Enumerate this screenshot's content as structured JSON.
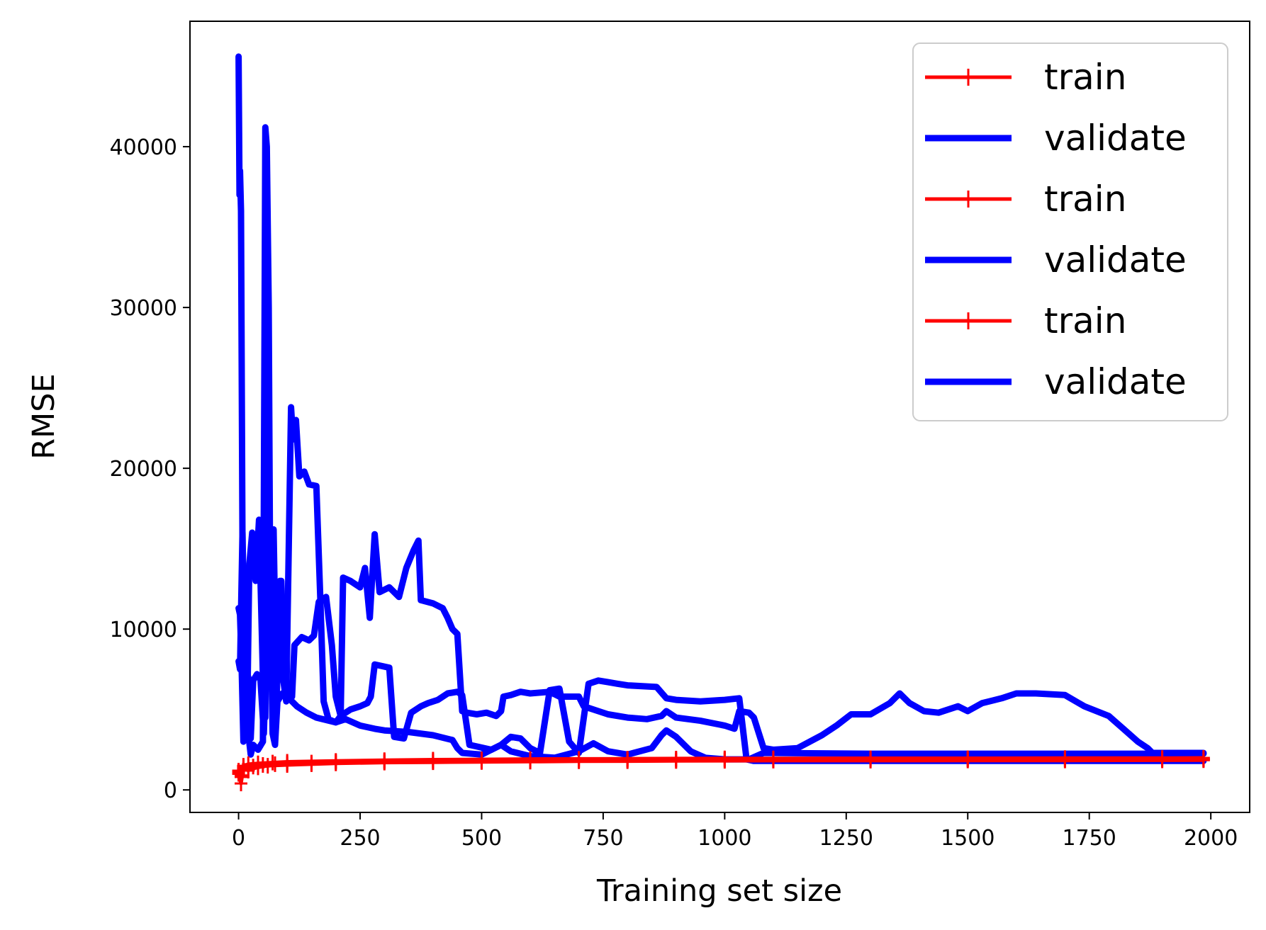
{
  "chart_data": {
    "type": "line",
    "xlabel": "Training set size",
    "ylabel": "RMSE",
    "xlim": [
      -100,
      2080
    ],
    "ylim": [
      -1400,
      47800
    ],
    "xticks": [
      "0",
      "250",
      "500",
      "750",
      "1000",
      "1250",
      "1500",
      "1750",
      "2000"
    ],
    "yticks": [
      "0",
      "10000",
      "20000",
      "30000",
      "40000"
    ],
    "grid": false,
    "legend_position": "top-right",
    "legend": [
      "train",
      "validate",
      "train",
      "validate",
      "train",
      "validate"
    ],
    "colors": {
      "train": "#ff0000",
      "validate": "#0000ff"
    },
    "series": [
      {
        "name": "train",
        "color": "#ff0000",
        "marker": "+",
        "points": [
          [
            0,
            1100
          ],
          [
            5,
            900
          ],
          [
            10,
            1400
          ],
          [
            20,
            1200
          ],
          [
            30,
            1450
          ],
          [
            50,
            1550
          ],
          [
            75,
            1600
          ],
          [
            100,
            1650
          ],
          [
            150,
            1700
          ],
          [
            200,
            1750
          ],
          [
            300,
            1780
          ],
          [
            400,
            1800
          ],
          [
            500,
            1820
          ],
          [
            600,
            1850
          ],
          [
            700,
            1860
          ],
          [
            800,
            1870
          ],
          [
            900,
            1880
          ],
          [
            1000,
            1900
          ],
          [
            1100,
            1900
          ],
          [
            1300,
            1900
          ],
          [
            1500,
            1900
          ],
          [
            1700,
            1900
          ],
          [
            1900,
            1900
          ],
          [
            1985,
            1900
          ]
        ]
      },
      {
        "name": "validate",
        "color": "#0000ff",
        "points": [
          [
            0,
            45600
          ],
          [
            1,
            41000
          ],
          [
            2,
            37000
          ],
          [
            3,
            38500
          ],
          [
            5,
            36000
          ],
          [
            8,
            15000
          ],
          [
            10,
            11000
          ],
          [
            15,
            9500
          ],
          [
            20,
            3500
          ],
          [
            25,
            2200
          ],
          [
            30,
            2800
          ],
          [
            40,
            2500
          ],
          [
            50,
            3000
          ],
          [
            55,
            41200
          ],
          [
            58,
            40000
          ],
          [
            62,
            30000
          ],
          [
            65,
            12000
          ],
          [
            70,
            3500
          ],
          [
            75,
            2800
          ],
          [
            80,
            5500
          ],
          [
            90,
            6000
          ],
          [
            100,
            5800
          ],
          [
            120,
            5200
          ],
          [
            140,
            4800
          ],
          [
            160,
            4500
          ],
          [
            200,
            4200
          ],
          [
            220,
            4400
          ],
          [
            250,
            4000
          ],
          [
            280,
            3800
          ],
          [
            300,
            3700
          ],
          [
            350,
            3600
          ],
          [
            400,
            3400
          ],
          [
            440,
            3100
          ],
          [
            450,
            2600
          ],
          [
            460,
            2300
          ],
          [
            500,
            2200
          ],
          [
            540,
            2800
          ],
          [
            560,
            2400
          ],
          [
            600,
            2100
          ],
          [
            650,
            2000
          ],
          [
            700,
            2400
          ],
          [
            730,
            2900
          ],
          [
            760,
            2400
          ],
          [
            800,
            2200
          ],
          [
            850,
            2600
          ],
          [
            870,
            3400
          ],
          [
            880,
            3700
          ],
          [
            900,
            3300
          ],
          [
            930,
            2400
          ],
          [
            960,
            2000
          ],
          [
            1000,
            1900
          ],
          [
            1050,
            1900
          ],
          [
            1080,
            2300
          ],
          [
            1300,
            2250
          ],
          [
            1600,
            2250
          ],
          [
            1985,
            2250
          ]
        ]
      },
      {
        "name": "train",
        "color": "#ff0000",
        "marker": "+",
        "points": [
          [
            0,
            1000
          ],
          [
            5,
            400
          ],
          [
            10,
            1300
          ],
          [
            20,
            1250
          ],
          [
            40,
            1400
          ],
          [
            60,
            1500
          ],
          [
            100,
            1550
          ],
          [
            150,
            1600
          ],
          [
            200,
            1650
          ],
          [
            300,
            1700
          ],
          [
            400,
            1720
          ],
          [
            500,
            1740
          ],
          [
            600,
            1760
          ],
          [
            700,
            1780
          ],
          [
            800,
            1790
          ],
          [
            900,
            1800
          ],
          [
            1000,
            1810
          ],
          [
            1100,
            1820
          ],
          [
            1300,
            1820
          ],
          [
            1500,
            1830
          ],
          [
            1700,
            1830
          ],
          [
            1900,
            1840
          ],
          [
            1985,
            1850
          ]
        ]
      },
      {
        "name": "validate",
        "color": "#0000ff",
        "points": [
          [
            0,
            8000
          ],
          [
            3,
            7500
          ],
          [
            5,
            11000
          ],
          [
            8,
            16000
          ],
          [
            12,
            8500
          ],
          [
            18,
            5000
          ],
          [
            22,
            14000
          ],
          [
            28,
            16000
          ],
          [
            35,
            13000
          ],
          [
            42,
            16800
          ],
          [
            50,
            7000
          ],
          [
            55,
            4500
          ],
          [
            58,
            19500
          ],
          [
            62,
            12500
          ],
          [
            68,
            7800
          ],
          [
            72,
            16200
          ],
          [
            78,
            5300
          ],
          [
            85,
            13000
          ],
          [
            92,
            6800
          ],
          [
            98,
            5500
          ],
          [
            108,
            23800
          ],
          [
            112,
            21800
          ],
          [
            118,
            23000
          ],
          [
            125,
            19500
          ],
          [
            135,
            19800
          ],
          [
            145,
            19000
          ],
          [
            160,
            18900
          ],
          [
            168,
            12000
          ],
          [
            175,
            5500
          ],
          [
            185,
            4400
          ],
          [
            200,
            4200
          ],
          [
            210,
            4600
          ],
          [
            215,
            13200
          ],
          [
            230,
            13000
          ],
          [
            250,
            12600
          ],
          [
            260,
            13800
          ],
          [
            270,
            10700
          ],
          [
            280,
            15900
          ],
          [
            290,
            12300
          ],
          [
            310,
            12600
          ],
          [
            330,
            12000
          ],
          [
            345,
            13800
          ],
          [
            360,
            14900
          ],
          [
            370,
            15500
          ],
          [
            375,
            11800
          ],
          [
            400,
            11600
          ],
          [
            420,
            11300
          ],
          [
            430,
            10700
          ],
          [
            440,
            10000
          ],
          [
            450,
            9700
          ],
          [
            460,
            4900
          ],
          [
            470,
            4800
          ],
          [
            490,
            4700
          ],
          [
            510,
            4800
          ],
          [
            530,
            4600
          ],
          [
            540,
            4900
          ],
          [
            545,
            5800
          ],
          [
            560,
            5900
          ],
          [
            580,
            6100
          ],
          [
            600,
            6000
          ],
          [
            640,
            6100
          ],
          [
            660,
            5800
          ],
          [
            700,
            5800
          ],
          [
            710,
            5200
          ],
          [
            740,
            4900
          ],
          [
            760,
            4700
          ],
          [
            800,
            4500
          ],
          [
            840,
            4400
          ],
          [
            870,
            4600
          ],
          [
            880,
            4900
          ],
          [
            900,
            4500
          ],
          [
            950,
            4300
          ],
          [
            1000,
            4000
          ],
          [
            1020,
            3800
          ],
          [
            1030,
            4900
          ],
          [
            1050,
            4800
          ],
          [
            1060,
            4500
          ],
          [
            1080,
            2600
          ],
          [
            1100,
            2500
          ],
          [
            1150,
            2600
          ],
          [
            1200,
            3400
          ],
          [
            1230,
            4000
          ],
          [
            1260,
            4700
          ],
          [
            1300,
            4700
          ],
          [
            1340,
            5400
          ],
          [
            1360,
            6000
          ],
          [
            1380,
            5400
          ],
          [
            1410,
            4900
          ],
          [
            1440,
            4800
          ],
          [
            1480,
            5200
          ],
          [
            1500,
            4900
          ],
          [
            1530,
            5400
          ],
          [
            1570,
            5700
          ],
          [
            1600,
            6000
          ],
          [
            1640,
            6000
          ],
          [
            1700,
            5900
          ],
          [
            1740,
            5200
          ],
          [
            1790,
            4600
          ],
          [
            1820,
            3800
          ],
          [
            1850,
            3000
          ],
          [
            1870,
            2600
          ],
          [
            1880,
            2300
          ],
          [
            1985,
            2300
          ]
        ]
      },
      {
        "name": "train",
        "color": "#ff0000",
        "marker": "+",
        "points": [
          [
            0,
            1200
          ],
          [
            5,
            800
          ],
          [
            10,
            1500
          ],
          [
            20,
            1600
          ],
          [
            40,
            1650
          ],
          [
            70,
            1700
          ],
          [
            100,
            1750
          ],
          [
            200,
            1800
          ],
          [
            300,
            1850
          ],
          [
            400,
            1880
          ],
          [
            500,
            1900
          ],
          [
            600,
            1920
          ],
          [
            700,
            1930
          ],
          [
            800,
            1940
          ],
          [
            900,
            1950
          ],
          [
            1000,
            1960
          ],
          [
            1100,
            1960
          ],
          [
            1300,
            1970
          ],
          [
            1500,
            1970
          ],
          [
            1700,
            1980
          ],
          [
            1900,
            1980
          ],
          [
            1985,
            1990
          ]
        ]
      },
      {
        "name": "validate",
        "color": "#0000ff",
        "points": [
          [
            0,
            11300
          ],
          [
            3,
            10900
          ],
          [
            6,
            8000
          ],
          [
            10,
            3000
          ],
          [
            15,
            7500
          ],
          [
            20,
            7000
          ],
          [
            25,
            3200
          ],
          [
            30,
            6800
          ],
          [
            38,
            7200
          ],
          [
            45,
            6900
          ],
          [
            52,
            3500
          ],
          [
            60,
            11000
          ],
          [
            66,
            8200
          ],
          [
            72,
            12800
          ],
          [
            80,
            11000
          ],
          [
            88,
            13000
          ],
          [
            95,
            6000
          ],
          [
            102,
            6200
          ],
          [
            110,
            5800
          ],
          [
            115,
            9000
          ],
          [
            130,
            9500
          ],
          [
            145,
            9300
          ],
          [
            155,
            9600
          ],
          [
            165,
            11700
          ],
          [
            180,
            12000
          ],
          [
            192,
            9000
          ],
          [
            200,
            5800
          ],
          [
            210,
            4600
          ],
          [
            230,
            5000
          ],
          [
            250,
            5200
          ],
          [
            265,
            5400
          ],
          [
            272,
            5800
          ],
          [
            280,
            7800
          ],
          [
            295,
            7700
          ],
          [
            310,
            7600
          ],
          [
            320,
            3300
          ],
          [
            340,
            3200
          ],
          [
            355,
            4800
          ],
          [
            375,
            5200
          ],
          [
            390,
            5400
          ],
          [
            410,
            5600
          ],
          [
            430,
            6000
          ],
          [
            450,
            6100
          ],
          [
            460,
            5900
          ],
          [
            475,
            2800
          ],
          [
            490,
            2700
          ],
          [
            520,
            2500
          ],
          [
            540,
            2800
          ],
          [
            560,
            3300
          ],
          [
            580,
            3200
          ],
          [
            600,
            2600
          ],
          [
            620,
            2300
          ],
          [
            640,
            6200
          ],
          [
            660,
            6300
          ],
          [
            680,
            3000
          ],
          [
            700,
            2300
          ],
          [
            720,
            6600
          ],
          [
            740,
            6800
          ],
          [
            760,
            6700
          ],
          [
            780,
            6600
          ],
          [
            800,
            6500
          ],
          [
            860,
            6400
          ],
          [
            880,
            5700
          ],
          [
            900,
            5600
          ],
          [
            950,
            5500
          ],
          [
            1000,
            5600
          ],
          [
            1030,
            5700
          ],
          [
            1045,
            1900
          ],
          [
            1060,
            1800
          ],
          [
            1080,
            1800
          ],
          [
            1200,
            1800
          ],
          [
            1400,
            1800
          ],
          [
            1600,
            1800
          ],
          [
            1800,
            1800
          ],
          [
            1985,
            1800
          ]
        ]
      }
    ]
  }
}
